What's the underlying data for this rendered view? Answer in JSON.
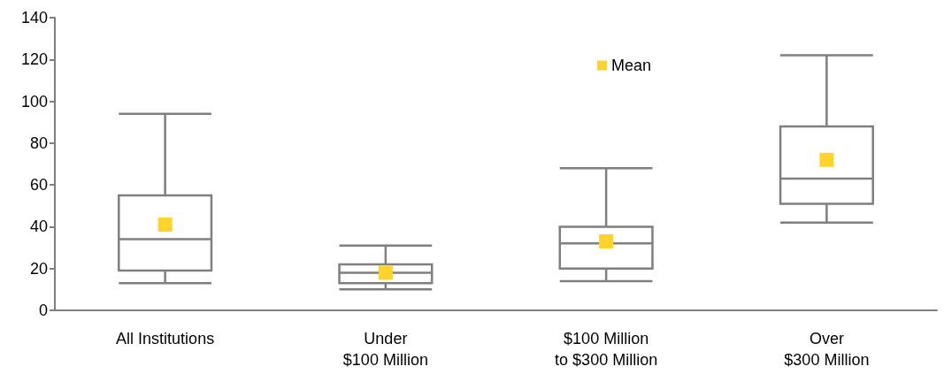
{
  "chart_data": {
    "type": "box",
    "categories": [
      "All Institutions",
      "Under\n$100 Million",
      "$100 Million\nto $300 Million",
      "Over\n$300 Million"
    ],
    "series": [
      {
        "color": "#7f7f7f",
        "boxes": [
          {
            "low": 13,
            "q1": 19,
            "median": 34,
            "q3": 55,
            "high": 94
          },
          {
            "low": 10,
            "q1": 13,
            "median": 18,
            "q3": 22,
            "high": 31
          },
          {
            "low": 14,
            "q1": 20,
            "median": 32,
            "q3": 40,
            "high": 68
          },
          {
            "low": 42,
            "q1": 51,
            "median": 63,
            "q3": 88,
            "high": 122
          }
        ]
      },
      {
        "type": "scatter",
        "name": "Mean",
        "color": "#ffd42a",
        "x": [
          "All Institutions",
          "Under\n$100 Million",
          "$100 Million\nto $300 Million",
          "Over\n$300 Million"
        ],
        "values": [
          41,
          18,
          33,
          72
        ]
      }
    ],
    "ylim": [
      0,
      140
    ],
    "yticks": [
      0,
      20,
      40,
      60,
      80,
      100,
      120,
      140
    ],
    "grid": false,
    "legend": "top",
    "marker": "square"
  }
}
